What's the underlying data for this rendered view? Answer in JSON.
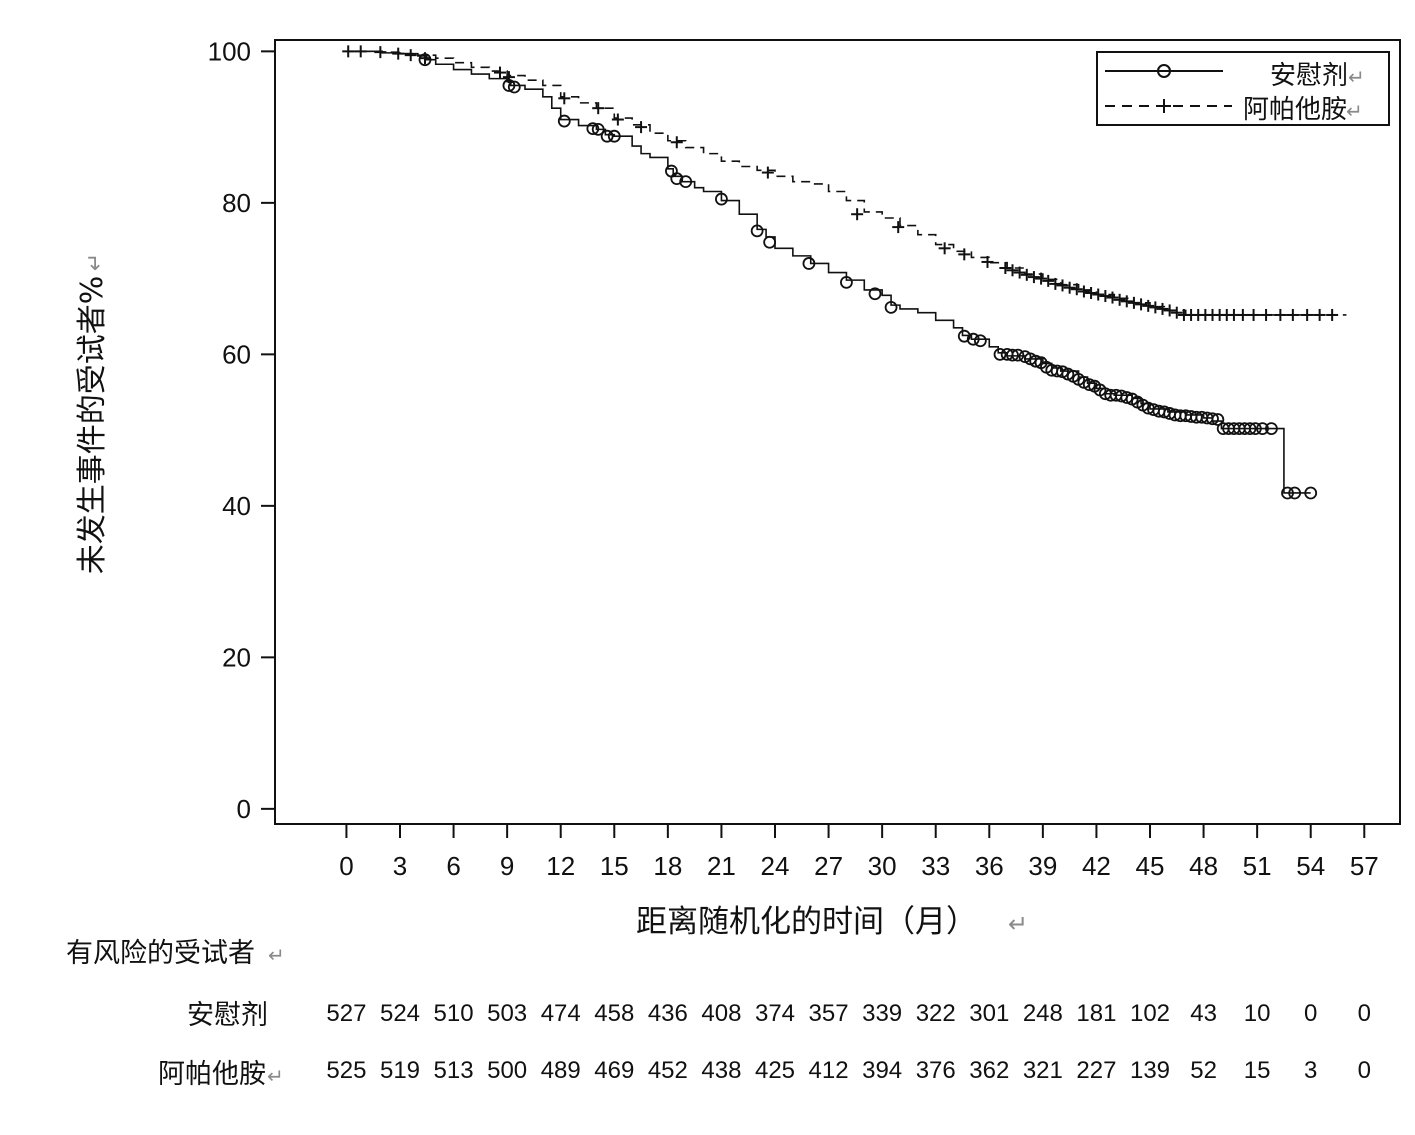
{
  "chart_data": {
    "type": "line",
    "subtype": "kaplan-meier",
    "xlabel": "距离随机化的时间（月）",
    "ylabel": "未发生事件的受试者%",
    "xlim": [
      -4,
      59
    ],
    "ylim": [
      -2,
      101.5
    ],
    "xticks": [
      0,
      3,
      6,
      9,
      12,
      15,
      18,
      21,
      24,
      27,
      30,
      33,
      36,
      39,
      42,
      45,
      48,
      51,
      54,
      57
    ],
    "yticks": [
      0,
      20,
      40,
      60,
      80,
      100
    ],
    "legend_position": "top-right",
    "series": [
      {
        "name": "安慰剂",
        "line_style": "solid",
        "censor_marker": "circle",
        "color": "#111111",
        "steps": [
          [
            0,
            100
          ],
          [
            1,
            100
          ],
          [
            2,
            99.8
          ],
          [
            3,
            99.7
          ],
          [
            4,
            99.4
          ],
          [
            4.5,
            98.9
          ],
          [
            5,
            98.3
          ],
          [
            6,
            97.6
          ],
          [
            7,
            97
          ],
          [
            8,
            96.4
          ],
          [
            9,
            96
          ],
          [
            9.2,
            95.5
          ],
          [
            10,
            95
          ],
          [
            11,
            94
          ],
          [
            11.5,
            92.5
          ],
          [
            12,
            91
          ],
          [
            13,
            90.2
          ],
          [
            14,
            89.7
          ],
          [
            14.5,
            89
          ],
          [
            15,
            88.8
          ],
          [
            16,
            87.5
          ],
          [
            16.5,
            86.5
          ],
          [
            17,
            86
          ],
          [
            18,
            84.5
          ],
          [
            18.3,
            83.5
          ],
          [
            18.8,
            82.8
          ],
          [
            19.5,
            82
          ],
          [
            20,
            81.5
          ],
          [
            21,
            80.3
          ],
          [
            22,
            78.5
          ],
          [
            23,
            76.5
          ],
          [
            23.5,
            75.5
          ],
          [
            24,
            74
          ],
          [
            25,
            73
          ],
          [
            26,
            72
          ],
          [
            27,
            70.8
          ],
          [
            28,
            69.8
          ],
          [
            29,
            68.5
          ],
          [
            30,
            67.8
          ],
          [
            30.5,
            66.5
          ],
          [
            31,
            66
          ],
          [
            32,
            65.5
          ],
          [
            33,
            64.5
          ],
          [
            34,
            63.5
          ],
          [
            34.5,
            62.5
          ],
          [
            35,
            62
          ],
          [
            36,
            61
          ],
          [
            36.5,
            60.2
          ],
          [
            37,
            59.8
          ],
          [
            38,
            59.4
          ],
          [
            39,
            58.8
          ],
          [
            39.5,
            58.2
          ],
          [
            40,
            57.8
          ],
          [
            41,
            57
          ],
          [
            41.5,
            56.2
          ],
          [
            42,
            55.5
          ],
          [
            42.5,
            54.8
          ],
          [
            43,
            54.6
          ],
          [
            44,
            54.2
          ],
          [
            44.5,
            53.5
          ],
          [
            45,
            52.8
          ],
          [
            46,
            52.4
          ],
          [
            47,
            52
          ],
          [
            48,
            51.6
          ],
          [
            48.5,
            51.2
          ],
          [
            49,
            50.2
          ],
          [
            52.5,
            50.2
          ],
          [
            52.5,
            41.7
          ],
          [
            54,
            41.7
          ]
        ],
        "censored": [
          [
            4.4,
            98.9
          ],
          [
            9.1,
            95.5
          ],
          [
            9.4,
            95.3
          ],
          [
            12.2,
            90.8
          ],
          [
            13.8,
            89.8
          ],
          [
            14.1,
            89.7
          ],
          [
            14.6,
            88.8
          ],
          [
            15,
            88.8
          ],
          [
            18.2,
            84.2
          ],
          [
            18.5,
            83.2
          ],
          [
            19,
            82.8
          ],
          [
            21,
            80.5
          ],
          [
            23,
            76.3
          ],
          [
            23.7,
            74.8
          ],
          [
            25.9,
            72
          ],
          [
            28,
            69.5
          ],
          [
            29.6,
            68
          ],
          [
            30.5,
            66.2
          ],
          [
            34.6,
            62.4
          ],
          [
            35.1,
            62
          ],
          [
            35.5,
            61.8
          ],
          [
            36.6,
            60
          ],
          [
            37,
            60
          ],
          [
            37.3,
            59.9
          ],
          [
            37.6,
            59.9
          ],
          [
            38,
            59.7
          ],
          [
            38.3,
            59.4
          ],
          [
            38.6,
            59.1
          ],
          [
            38.9,
            58.9
          ],
          [
            39.2,
            58.3
          ],
          [
            39.5,
            57.9
          ],
          [
            39.8,
            57.8
          ],
          [
            40.1,
            57.7
          ],
          [
            40.4,
            57.4
          ],
          [
            40.7,
            57.1
          ],
          [
            41,
            56.7
          ],
          [
            41.3,
            56.3
          ],
          [
            41.6,
            56
          ],
          [
            41.9,
            55.8
          ],
          [
            42.2,
            55.3
          ],
          [
            42.5,
            54.8
          ],
          [
            42.8,
            54.6
          ],
          [
            43.1,
            54.6
          ],
          [
            43.4,
            54.5
          ],
          [
            43.7,
            54.3
          ],
          [
            44,
            54.1
          ],
          [
            44.3,
            53.7
          ],
          [
            44.6,
            53.3
          ],
          [
            44.9,
            52.9
          ],
          [
            45.2,
            52.7
          ],
          [
            45.5,
            52.5
          ],
          [
            45.8,
            52.4
          ],
          [
            46.1,
            52.2
          ],
          [
            46.4,
            52
          ],
          [
            46.7,
            51.9
          ],
          [
            47,
            51.9
          ],
          [
            47.3,
            51.8
          ],
          [
            47.6,
            51.7
          ],
          [
            47.9,
            51.7
          ],
          [
            48.2,
            51.6
          ],
          [
            48.5,
            51.5
          ],
          [
            48.8,
            51.4
          ],
          [
            49.1,
            50.2
          ],
          [
            49.4,
            50.2
          ],
          [
            49.7,
            50.2
          ],
          [
            50,
            50.2
          ],
          [
            50.3,
            50.2
          ],
          [
            50.6,
            50.2
          ],
          [
            50.9,
            50.2
          ],
          [
            51.3,
            50.2
          ],
          [
            51.8,
            50.2
          ],
          [
            52.7,
            41.7
          ],
          [
            53.1,
            41.7
          ],
          [
            54,
            41.7
          ]
        ]
      },
      {
        "name": "阿帕他胺",
        "line_style": "dashed",
        "censor_marker": "plus",
        "color": "#111111",
        "steps": [
          [
            0,
            100
          ],
          [
            2,
            99.9
          ],
          [
            3,
            99.7
          ],
          [
            4,
            99.5
          ],
          [
            5,
            99.1
          ],
          [
            6,
            98.5
          ],
          [
            7,
            97.9
          ],
          [
            8,
            97.4
          ],
          [
            9,
            96.8
          ],
          [
            10,
            96.2
          ],
          [
            11,
            95.5
          ],
          [
            12,
            94
          ],
          [
            13,
            93.2
          ],
          [
            14,
            92.5
          ],
          [
            15,
            91.2
          ],
          [
            16,
            90.3
          ],
          [
            17,
            89.2
          ],
          [
            18,
            88.2
          ],
          [
            19,
            87.3
          ],
          [
            20,
            86.5
          ],
          [
            21,
            85.5
          ],
          [
            22,
            84.8
          ],
          [
            23,
            84.3
          ],
          [
            24,
            83.5
          ],
          [
            25,
            82.8
          ],
          [
            26,
            82.5
          ],
          [
            27,
            81.5
          ],
          [
            28,
            80.3
          ],
          [
            29,
            78.8
          ],
          [
            30,
            78
          ],
          [
            31,
            77
          ],
          [
            32,
            75.8
          ],
          [
            33,
            74.5
          ],
          [
            34,
            73.6
          ],
          [
            35,
            72.8
          ],
          [
            36,
            72.1
          ],
          [
            37,
            71.4
          ],
          [
            38,
            70.6
          ],
          [
            39,
            69.9
          ],
          [
            40,
            69.2
          ],
          [
            41,
            68.5
          ],
          [
            42,
            67.9
          ],
          [
            43,
            67.4
          ],
          [
            44,
            66.8
          ],
          [
            45,
            66.3
          ],
          [
            46,
            65.8
          ],
          [
            47,
            65.2
          ],
          [
            56,
            65.2
          ]
        ],
        "censored": [
          [
            0.1,
            100
          ],
          [
            0.8,
            100
          ],
          [
            1.9,
            99.9
          ],
          [
            2.9,
            99.7
          ],
          [
            3.6,
            99.5
          ],
          [
            4.4,
            99.1
          ],
          [
            8.6,
            97.2
          ],
          [
            9.1,
            96.6
          ],
          [
            12.2,
            93.8
          ],
          [
            14.1,
            92.5
          ],
          [
            15.2,
            91
          ],
          [
            16.5,
            90
          ],
          [
            18.5,
            88
          ],
          [
            23.6,
            84
          ],
          [
            28.6,
            78.5
          ],
          [
            30.9,
            76.8
          ],
          [
            33.5,
            74
          ],
          [
            34.6,
            73.2
          ],
          [
            35.9,
            72.2
          ],
          [
            36.9,
            71.4
          ],
          [
            37.3,
            71.1
          ],
          [
            37.7,
            70.8
          ],
          [
            38.1,
            70.5
          ],
          [
            38.5,
            70.2
          ],
          [
            38.9,
            70
          ],
          [
            39.3,
            69.7
          ],
          [
            39.7,
            69.3
          ],
          [
            40.1,
            69.1
          ],
          [
            40.5,
            68.8
          ],
          [
            40.9,
            68.6
          ],
          [
            41.3,
            68.3
          ],
          [
            41.7,
            68.1
          ],
          [
            42.1,
            67.9
          ],
          [
            42.5,
            67.7
          ],
          [
            42.9,
            67.5
          ],
          [
            43.3,
            67.2
          ],
          [
            43.7,
            67
          ],
          [
            44.1,
            66.8
          ],
          [
            44.5,
            66.6
          ],
          [
            44.9,
            66.4
          ],
          [
            45.3,
            66.2
          ],
          [
            45.7,
            66
          ],
          [
            46.1,
            65.8
          ],
          [
            46.5,
            65.5
          ],
          [
            46.9,
            65.2
          ],
          [
            47.3,
            65.2
          ],
          [
            47.7,
            65.2
          ],
          [
            48.1,
            65.2
          ],
          [
            48.5,
            65.2
          ],
          [
            48.9,
            65.2
          ],
          [
            49.3,
            65.2
          ],
          [
            49.7,
            65.2
          ],
          [
            50.2,
            65.2
          ],
          [
            50.8,
            65.2
          ],
          [
            51.5,
            65.2
          ],
          [
            52.3,
            65.2
          ],
          [
            53,
            65.2
          ],
          [
            53.8,
            65.2
          ],
          [
            54.5,
            65.2
          ],
          [
            55.2,
            65.2
          ]
        ]
      }
    ]
  },
  "at_risk": {
    "title": "有风险的受试者",
    "rows": [
      {
        "label": "安慰剂",
        "values": [
          527,
          524,
          510,
          503,
          474,
          458,
          436,
          408,
          374,
          357,
          339,
          322,
          301,
          248,
          181,
          102,
          43,
          10,
          0,
          0
        ]
      },
      {
        "label": "阿帕他胺",
        "values": [
          525,
          519,
          513,
          500,
          489,
          469,
          452,
          438,
          425,
          412,
          394,
          376,
          362,
          321,
          227,
          139,
          52,
          15,
          3,
          0
        ]
      }
    ]
  }
}
